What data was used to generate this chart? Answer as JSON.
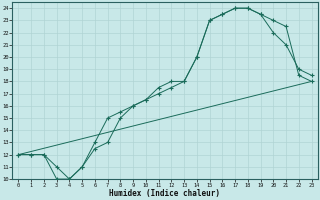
{
  "xlabel": "Humidex (Indice chaleur)",
  "background_color": "#c8e8e8",
  "line_color": "#1a6b5a",
  "grid_color": "#b0d4d4",
  "xlim": [
    -0.5,
    23.5
  ],
  "ylim": [
    10,
    24.5
  ],
  "xticks": [
    0,
    1,
    2,
    3,
    4,
    5,
    6,
    7,
    8,
    9,
    10,
    11,
    12,
    13,
    14,
    15,
    16,
    17,
    18,
    19,
    20,
    21,
    22,
    23
  ],
  "yticks": [
    10,
    11,
    12,
    13,
    14,
    15,
    16,
    17,
    18,
    19,
    20,
    21,
    22,
    23,
    24
  ],
  "line1_x": [
    0,
    1,
    2,
    3,
    4,
    5,
    6,
    7,
    8,
    9,
    10,
    11,
    12,
    13,
    14,
    15,
    16,
    17,
    18,
    19,
    20,
    21,
    22,
    23
  ],
  "line1_y": [
    12,
    12,
    12,
    10,
    10,
    11,
    13,
    15,
    15.5,
    16,
    16.5,
    17.5,
    18,
    18,
    20,
    23,
    23.5,
    24,
    24,
    23.5,
    22,
    21,
    19,
    18.5
  ],
  "line2_x": [
    0,
    1,
    2,
    3,
    4,
    5,
    6,
    7,
    8,
    9,
    10,
    11,
    12,
    13,
    14,
    15,
    16,
    17,
    18,
    19,
    20,
    21,
    22,
    23
  ],
  "line2_y": [
    12,
    12,
    12,
    11,
    10,
    11,
    12.5,
    13,
    15,
    16,
    16.5,
    17,
    17.5,
    18,
    20,
    23,
    23.5,
    24,
    24,
    23.5,
    23,
    22.5,
    18.5,
    18
  ],
  "line3_x": [
    0,
    23
  ],
  "line3_y": [
    12,
    18
  ]
}
